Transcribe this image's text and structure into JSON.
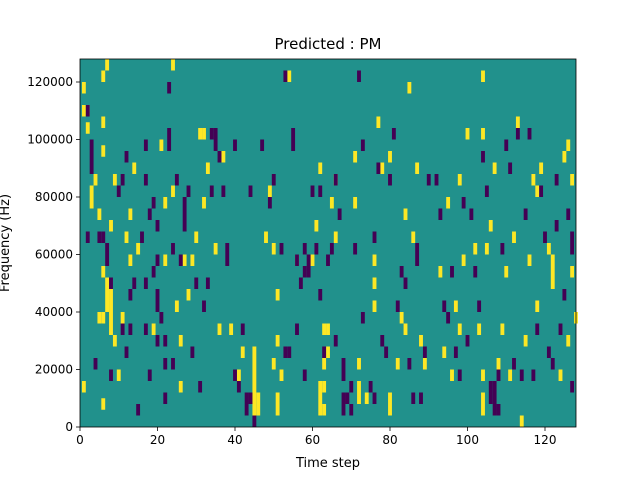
{
  "chart_data": {
    "type": "heatmap",
    "title": "Predicted : PM",
    "xlabel": "Time step",
    "ylabel": "Frequency (Hz)",
    "xlim": [
      0,
      128
    ],
    "ylim": [
      0,
      128000
    ],
    "x_ticks": [
      0,
      20,
      40,
      60,
      80,
      100,
      120
    ],
    "y_ticks": [
      0,
      20000,
      40000,
      60000,
      80000,
      100000,
      120000
    ],
    "x_tick_labels": [
      "0",
      "20",
      "40",
      "60",
      "80",
      "100",
      "120"
    ],
    "y_tick_labels": [
      "0",
      "20000",
      "40000",
      "60000",
      "80000",
      "100000",
      "120000"
    ],
    "colormap": "viridis",
    "background_value": 0,
    "colors": {
      "low": "#440154",
      "mid": "#21918c",
      "high": "#fde725"
    },
    "grid": false,
    "cell_height_hz": 4000,
    "high_cells": [
      [
        1,
        14000
      ],
      [
        1,
        110000
      ],
      [
        1,
        118000
      ],
      [
        2,
        104000
      ],
      [
        2,
        110000
      ],
      [
        3,
        78000
      ],
      [
        3,
        82000
      ],
      [
        4,
        86000
      ],
      [
        5,
        38000
      ],
      [
        5,
        74000
      ],
      [
        6,
        8000
      ],
      [
        6,
        38000
      ],
      [
        6,
        54000
      ],
      [
        6,
        96000
      ],
      [
        6,
        106000
      ],
      [
        6,
        122000
      ],
      [
        7,
        42000
      ],
      [
        7,
        46000
      ],
      [
        7,
        50000
      ],
      [
        7,
        126000
      ],
      [
        8,
        34000
      ],
      [
        8,
        38000
      ],
      [
        8,
        42000
      ],
      [
        8,
        46000
      ],
      [
        8,
        70000
      ],
      [
        9,
        86000
      ],
      [
        9,
        30000
      ],
      [
        10,
        18000
      ],
      [
        11,
        38000
      ],
      [
        12,
        66000
      ],
      [
        13,
        74000
      ],
      [
        13,
        58000
      ],
      [
        14,
        90000
      ],
      [
        15,
        62000
      ],
      [
        19,
        34000
      ],
      [
        21,
        98000
      ],
      [
        22,
        58000
      ],
      [
        22,
        78000
      ],
      [
        24,
        126000
      ],
      [
        24,
        82000
      ],
      [
        25,
        42000
      ],
      [
        26,
        30000
      ],
      [
        26,
        14000
      ],
      [
        27,
        58000
      ],
      [
        28,
        46000
      ],
      [
        29,
        58000
      ],
      [
        30,
        66000
      ],
      [
        31,
        102000
      ],
      [
        32,
        102000
      ],
      [
        32,
        78000
      ],
      [
        33,
        90000
      ],
      [
        35,
        62000
      ],
      [
        36,
        34000
      ],
      [
        37,
        94000
      ],
      [
        39,
        34000
      ],
      [
        41,
        18000
      ],
      [
        42,
        26000
      ],
      [
        45,
        6000
      ],
      [
        45,
        10000
      ],
      [
        45,
        14000
      ],
      [
        45,
        18000
      ],
      [
        45,
        22000
      ],
      [
        45,
        26000
      ],
      [
        46,
        6000
      ],
      [
        46,
        10000
      ],
      [
        48,
        66000
      ],
      [
        49,
        82000
      ],
      [
        50,
        62000
      ],
      [
        50,
        22000
      ],
      [
        51,
        6000
      ],
      [
        51,
        10000
      ],
      [
        51,
        30000
      ],
      [
        51,
        46000
      ],
      [
        52,
        18000
      ],
      [
        54,
        122000
      ],
      [
        56,
        58000
      ],
      [
        60,
        58000
      ],
      [
        61,
        70000
      ],
      [
        62,
        90000
      ],
      [
        62,
        14000
      ],
      [
        62,
        10000
      ],
      [
        62,
        6000
      ],
      [
        63,
        6000
      ],
      [
        63,
        14000
      ],
      [
        63,
        34000
      ],
      [
        63,
        22000
      ],
      [
        64,
        34000
      ],
      [
        64,
        26000
      ],
      [
        65,
        78000
      ],
      [
        66,
        86000
      ],
      [
        66,
        66000
      ],
      [
        71,
        94000
      ],
      [
        71,
        78000
      ],
      [
        72,
        14000
      ],
      [
        72,
        10000
      ],
      [
        72,
        22000
      ],
      [
        74,
        10000
      ],
      [
        76,
        42000
      ],
      [
        76,
        50000
      ],
      [
        76,
        58000
      ],
      [
        77,
        106000
      ],
      [
        78,
        90000
      ],
      [
        80,
        6000
      ],
      [
        80,
        94000
      ],
      [
        80,
        10000
      ],
      [
        82,
        22000
      ],
      [
        83,
        38000
      ],
      [
        84,
        74000
      ],
      [
        84,
        34000
      ],
      [
        85,
        118000
      ],
      [
        86,
        66000
      ],
      [
        87,
        90000
      ],
      [
        88,
        30000
      ],
      [
        89,
        22000
      ],
      [
        93,
        54000
      ],
      [
        94,
        26000
      ],
      [
        95,
        78000
      ],
      [
        96,
        18000
      ],
      [
        97,
        42000
      ],
      [
        98,
        86000
      ],
      [
        98,
        34000
      ],
      [
        99,
        58000
      ],
      [
        100,
        102000
      ],
      [
        102,
        62000
      ],
      [
        103,
        34000
      ],
      [
        104,
        6000
      ],
      [
        104,
        10000
      ],
      [
        104,
        102000
      ],
      [
        104,
        18000
      ],
      [
        104,
        122000
      ],
      [
        105,
        62000
      ],
      [
        106,
        70000
      ],
      [
        107,
        90000
      ],
      [
        108,
        22000
      ],
      [
        109,
        34000
      ],
      [
        110,
        54000
      ],
      [
        111,
        18000
      ],
      [
        112,
        66000
      ],
      [
        113,
        106000
      ],
      [
        114,
        2000
      ],
      [
        115,
        30000
      ],
      [
        116,
        58000
      ],
      [
        117,
        86000
      ],
      [
        118,
        42000
      ],
      [
        118,
        82000
      ],
      [
        119,
        90000
      ],
      [
        121,
        62000
      ],
      [
        122,
        54000
      ],
      [
        122,
        58000
      ],
      [
        122,
        50000
      ],
      [
        124,
        18000
      ],
      [
        125,
        94000
      ],
      [
        126,
        98000
      ],
      [
        126,
        30000
      ],
      [
        127,
        54000
      ],
      [
        127,
        86000
      ],
      [
        128,
        38000
      ]
    ],
    "low_cells": [
      [
        2,
        66000
      ],
      [
        2,
        110000
      ],
      [
        3,
        90000
      ],
      [
        3,
        94000
      ],
      [
        3,
        98000
      ],
      [
        4,
        22000
      ],
      [
        5,
        66000
      ],
      [
        6,
        66000
      ],
      [
        7,
        58000
      ],
      [
        7,
        62000
      ],
      [
        8,
        18000
      ],
      [
        8,
        50000
      ],
      [
        10,
        82000
      ],
      [
        11,
        34000
      ],
      [
        11,
        86000
      ],
      [
        12,
        26000
      ],
      [
        12,
        94000
      ],
      [
        13,
        34000
      ],
      [
        13,
        46000
      ],
      [
        14,
        50000
      ],
      [
        15,
        6000
      ],
      [
        16,
        66000
      ],
      [
        17,
        50000
      ],
      [
        17,
        86000
      ],
      [
        17,
        34000
      ],
      [
        17,
        98000
      ],
      [
        18,
        18000
      ],
      [
        18,
        74000
      ],
      [
        19,
        54000
      ],
      [
        19,
        78000
      ],
      [
        20,
        58000
      ],
      [
        20,
        42000
      ],
      [
        20,
        46000
      ],
      [
        20,
        70000
      ],
      [
        20,
        30000
      ],
      [
        21,
        38000
      ],
      [
        22,
        10000
      ],
      [
        22,
        22000
      ],
      [
        22,
        30000
      ],
      [
        23,
        98000
      ],
      [
        23,
        102000
      ],
      [
        23,
        118000
      ],
      [
        24,
        22000
      ],
      [
        24,
        62000
      ],
      [
        25,
        86000
      ],
      [
        26,
        58000
      ],
      [
        27,
        70000
      ],
      [
        27,
        74000
      ],
      [
        27,
        78000
      ],
      [
        28,
        82000
      ],
      [
        29,
        26000
      ],
      [
        30,
        50000
      ],
      [
        31,
        14000
      ],
      [
        32,
        42000
      ],
      [
        33,
        50000
      ],
      [
        34,
        82000
      ],
      [
        34,
        102000
      ],
      [
        35,
        98000
      ],
      [
        35,
        102000
      ],
      [
        36,
        94000
      ],
      [
        37,
        82000
      ],
      [
        38,
        58000
      ],
      [
        38,
        62000
      ],
      [
        40,
        98000
      ],
      [
        40,
        18000
      ],
      [
        41,
        14000
      ],
      [
        42,
        34000
      ],
      [
        43,
        6000
      ],
      [
        43,
        10000
      ],
      [
        44,
        10000
      ],
      [
        44,
        82000
      ],
      [
        45,
        2000
      ],
      [
        47,
        98000
      ],
      [
        49,
        78000
      ],
      [
        50,
        86000
      ],
      [
        52,
        62000
      ],
      [
        53,
        122000
      ],
      [
        53,
        26000
      ],
      [
        54,
        26000
      ],
      [
        55,
        102000
      ],
      [
        55,
        98000
      ],
      [
        56,
        58000
      ],
      [
        56,
        34000
      ],
      [
        57,
        50000
      ],
      [
        58,
        54000
      ],
      [
        58,
        18000
      ],
      [
        58,
        62000
      ],
      [
        59,
        54000
      ],
      [
        59,
        58000
      ],
      [
        60,
        82000
      ],
      [
        61,
        62000
      ],
      [
        62,
        46000
      ],
      [
        62,
        82000
      ],
      [
        63,
        26000
      ],
      [
        64,
        58000
      ],
      [
        65,
        62000
      ],
      [
        66,
        30000
      ],
      [
        66,
        86000
      ],
      [
        67,
        74000
      ],
      [
        68,
        18000
      ],
      [
        68,
        6000
      ],
      [
        68,
        10000
      ],
      [
        68,
        22000
      ],
      [
        69,
        10000
      ],
      [
        70,
        6000
      ],
      [
        70,
        14000
      ],
      [
        71,
        62000
      ],
      [
        72,
        122000
      ],
      [
        73,
        98000
      ],
      [
        73,
        38000
      ],
      [
        75,
        14000
      ],
      [
        76,
        10000
      ],
      [
        76,
        66000
      ],
      [
        77,
        90000
      ],
      [
        78,
        30000
      ],
      [
        79,
        26000
      ],
      [
        80,
        86000
      ],
      [
        81,
        102000
      ],
      [
        82,
        42000
      ],
      [
        83,
        54000
      ],
      [
        84,
        50000
      ],
      [
        85,
        22000
      ],
      [
        86,
        10000
      ],
      [
        87,
        62000
      ],
      [
        87,
        58000
      ],
      [
        88,
        10000
      ],
      [
        89,
        26000
      ],
      [
        90,
        86000
      ],
      [
        92,
        86000
      ],
      [
        93,
        74000
      ],
      [
        94,
        42000
      ],
      [
        95,
        38000
      ],
      [
        96,
        54000
      ],
      [
        97,
        26000
      ],
      [
        98,
        18000
      ],
      [
        99,
        78000
      ],
      [
        100,
        30000
      ],
      [
        101,
        74000
      ],
      [
        102,
        54000
      ],
      [
        103,
        42000
      ],
      [
        104,
        94000
      ],
      [
        105,
        82000
      ],
      [
        106,
        14000
      ],
      [
        106,
        10000
      ],
      [
        107,
        10000
      ],
      [
        107,
        6000
      ],
      [
        107,
        14000
      ],
      [
        108,
        18000
      ],
      [
        108,
        6000
      ],
      [
        109,
        62000
      ],
      [
        110,
        98000
      ],
      [
        111,
        90000
      ],
      [
        112,
        22000
      ],
      [
        113,
        102000
      ],
      [
        114,
        18000
      ],
      [
        115,
        74000
      ],
      [
        116,
        102000
      ],
      [
        117,
        18000
      ],
      [
        118,
        34000
      ],
      [
        119,
        82000
      ],
      [
        120,
        66000
      ],
      [
        121,
        26000
      ],
      [
        122,
        22000
      ],
      [
        123,
        70000
      ],
      [
        123,
        86000
      ],
      [
        124,
        34000
      ],
      [
        125,
        46000
      ],
      [
        126,
        74000
      ],
      [
        127,
        62000
      ],
      [
        127,
        66000
      ],
      [
        127,
        14000
      ]
    ]
  }
}
